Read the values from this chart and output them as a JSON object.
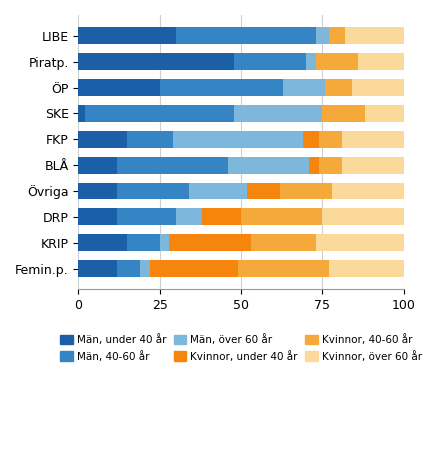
{
  "parties": [
    "LIBE",
    "Piratp.",
    "ÖP",
    "SKE",
    "FKP",
    "BLÅ",
    "Övriga",
    "DRP",
    "KRIP",
    "Femin.p."
  ],
  "segments": {
    "man_under40": [
      30,
      48,
      25,
      2,
      15,
      12,
      12,
      12,
      15,
      12
    ],
    "man_40_60": [
      43,
      22,
      38,
      46,
      14,
      34,
      22,
      18,
      10,
      7
    ],
    "man_over60": [
      4,
      3,
      13,
      27,
      40,
      25,
      18,
      8,
      3,
      3
    ],
    "kvin_under40": [
      0,
      0,
      0,
      0,
      5,
      3,
      10,
      12,
      25,
      27
    ],
    "kvin_40_60": [
      5,
      13,
      8,
      13,
      7,
      7,
      16,
      25,
      20,
      28
    ],
    "kvin_over60": [
      18,
      14,
      16,
      12,
      19,
      19,
      22,
      25,
      27,
      23
    ]
  },
  "colors": {
    "man_under40": "#1a5fa8",
    "man_40_60": "#3585c5",
    "man_over60": "#7db8dc",
    "kvin_under40": "#f5850c",
    "kvin_40_60": "#f5a93a",
    "kvin_over60": "#fad99a"
  },
  "legend_labels": {
    "man_under40": "Män, under 40 år",
    "man_40_60": "Män, 40-60 år",
    "man_over60": "Män, över 60 år",
    "kvin_under40": "Kvinnor, under 40 år",
    "kvin_40_60": "Kvinnor, 40-60 år",
    "kvin_over60": "Kvinnor, över 60 år"
  },
  "xlim": [
    0,
    100
  ],
  "xticks": [
    0,
    25,
    50,
    75,
    100
  ],
  "bar_height": 0.65,
  "background_color": "#ffffff",
  "grid_color": "#d0d0d0"
}
